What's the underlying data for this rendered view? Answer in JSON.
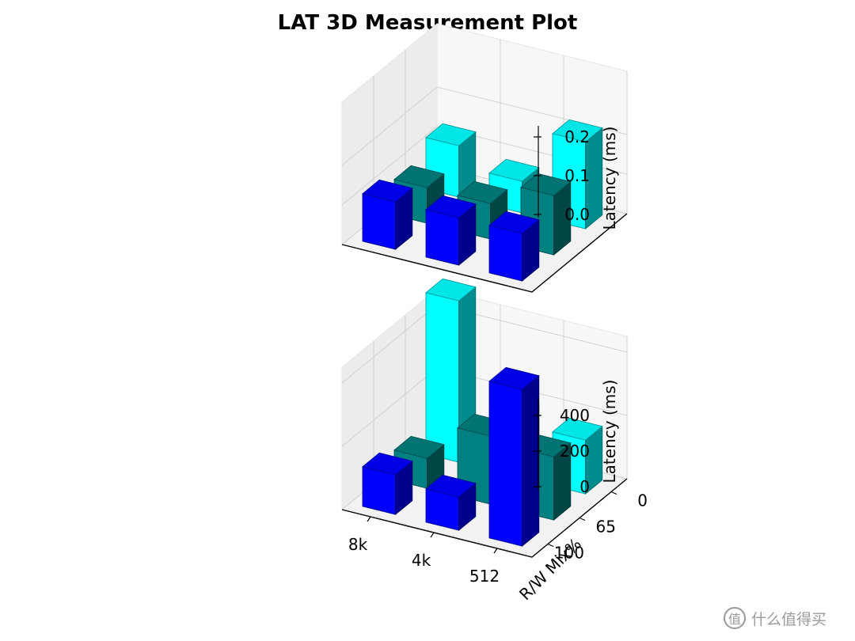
{
  "title": "LAT 3D Measurement Plot",
  "watermark": {
    "text": "什么值得买",
    "icon": "zhi-logo-icon"
  },
  "colors": {
    "front": "#0000ff",
    "middle": "#008080",
    "back": "#00ffff"
  },
  "chart_data": [
    {
      "type": "bar3d",
      "title": "LAT 3D Measurement Plot",
      "zlabel": "Latency (ms)",
      "zlim": [
        0,
        0.25
      ],
      "zticks": [
        "0.0",
        "0.1",
        "0.2"
      ],
      "zticks_values": [
        0,
        0.1,
        0.2
      ],
      "block_sizes": [
        "8k",
        "4k",
        "512"
      ],
      "rw_mix": [
        "100",
        "65",
        "0"
      ],
      "series": [
        {
          "name": "100",
          "values": [
            0.12,
            0.12,
            0.12
          ]
        },
        {
          "name": "65",
          "values": [
            0.09,
            0.09,
            0.15
          ]
        },
        {
          "name": "0",
          "values": [
            0.13,
            0.08,
            0.22
          ]
        }
      ]
    },
    {
      "type": "bar3d",
      "zlabel": "Latency (ms)",
      "zlim": [
        0,
        520
      ],
      "zticks": [
        "0",
        "200",
        "400"
      ],
      "zticks_values": [
        0,
        200,
        400
      ],
      "xlabel": "",
      "ylabel": "R/W Mix%",
      "xticks": [
        "8k",
        "4k",
        "512"
      ],
      "yticks": [
        "0",
        "65",
        "100"
      ],
      "block_sizes": [
        "8k",
        "4k",
        "512"
      ],
      "rw_mix": [
        "100",
        "65",
        "0"
      ],
      "series": [
        {
          "name": "100",
          "values": [
            125,
            105,
            495
          ]
        },
        {
          "name": "65",
          "values": [
            95,
            215,
            200
          ]
        },
        {
          "name": "0",
          "values": [
            510,
            190,
            170
          ]
        }
      ]
    }
  ]
}
